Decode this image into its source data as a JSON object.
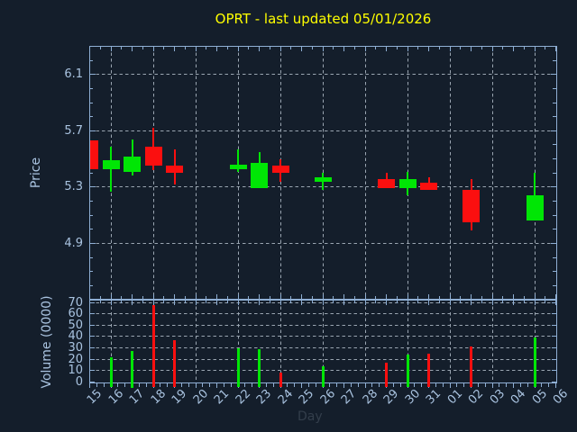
{
  "title": {
    "text": "OPRT - last updated 05/01/2026"
  },
  "colors": {
    "background": "#141e2b",
    "axes": "#8fafd4",
    "tick_labels": "#a9c3e0",
    "grid": "#9aa5b1",
    "up": "#00e605",
    "down": "#fb0f0f",
    "title": "#ffff00",
    "day_label": "#333e4b"
  },
  "chart_data": {
    "type": "candlestick_with_volume",
    "title": "OPRT - last updated 05/01/2026",
    "x_label": "Day",
    "grid": {
      "style": "dashed",
      "vertical_gridlines_at_days": [
        "16",
        "18",
        "20",
        "22",
        "24",
        "26",
        "28",
        "30",
        "01",
        "03",
        "05"
      ]
    },
    "price_axis": {
      "label": "Price",
      "ticks": [
        4.9,
        5.3,
        5.7,
        6.1
      ],
      "ylim": [
        4.51,
        6.3
      ],
      "minor_tick_step": 0.1
    },
    "volume_axis": {
      "label": "Volume (0000)",
      "ticks": [
        0,
        10,
        20,
        30,
        40,
        50,
        60,
        70
      ],
      "ylim": [
        0,
        72
      ]
    },
    "categories": [
      "15",
      "16",
      "17",
      "18",
      "19",
      "20",
      "21",
      "22",
      "23",
      "24",
      "25",
      "26",
      "27",
      "28",
      "29",
      "30",
      "31",
      "01",
      "02",
      "03",
      "04",
      "05",
      "06"
    ],
    "candles": [
      {
        "day": "15",
        "open": 5.63,
        "high": 5.63,
        "low": 5.43,
        "close": 5.43,
        "volume": null,
        "direction": "down"
      },
      {
        "day": "16",
        "open": 5.43,
        "high": 5.59,
        "low": 5.27,
        "close": 5.49,
        "volume": 22,
        "direction": "up"
      },
      {
        "day": "17",
        "open": 5.41,
        "high": 5.64,
        "low": 5.38,
        "close": 5.52,
        "volume": 27,
        "direction": "up"
      },
      {
        "day": "18",
        "open": 5.59,
        "high": 5.72,
        "low": 5.42,
        "close": 5.45,
        "volume": 68,
        "direction": "down"
      },
      {
        "day": "19",
        "open": 5.45,
        "high": 5.57,
        "low": 5.32,
        "close": 5.4,
        "volume": 37,
        "direction": "down"
      },
      {
        "day": "22",
        "open": 5.43,
        "high": 5.57,
        "low": 5.41,
        "close": 5.46,
        "volume": 30,
        "direction": "up"
      },
      {
        "day": "23",
        "open": 5.29,
        "high": 5.55,
        "low": 5.29,
        "close": 5.47,
        "volume": 29,
        "direction": "up"
      },
      {
        "day": "24",
        "open": 5.45,
        "high": 5.5,
        "low": 5.34,
        "close": 5.4,
        "volume": 8,
        "direction": "down"
      },
      {
        "day": "26",
        "open": 5.34,
        "high": 5.4,
        "low": 5.28,
        "close": 5.37,
        "volume": 14,
        "direction": "up"
      },
      {
        "day": "29",
        "open": 5.36,
        "high": 5.4,
        "low": 5.29,
        "close": 5.29,
        "volume": 17,
        "direction": "down"
      },
      {
        "day": "30",
        "open": 5.29,
        "high": 5.41,
        "low": 5.24,
        "close": 5.36,
        "volume": 24,
        "direction": "up"
      },
      {
        "day": "31",
        "open": 5.33,
        "high": 5.37,
        "low": 5.28,
        "close": 5.28,
        "volume": 25,
        "direction": "down"
      },
      {
        "day": "02",
        "open": 5.28,
        "high": 5.36,
        "low": 4.99,
        "close": 5.05,
        "volume": 31,
        "direction": "down"
      },
      {
        "day": "05",
        "open": 5.06,
        "high": 5.4,
        "low": 5.06,
        "close": 5.24,
        "volume": 39,
        "direction": "up"
      }
    ]
  }
}
